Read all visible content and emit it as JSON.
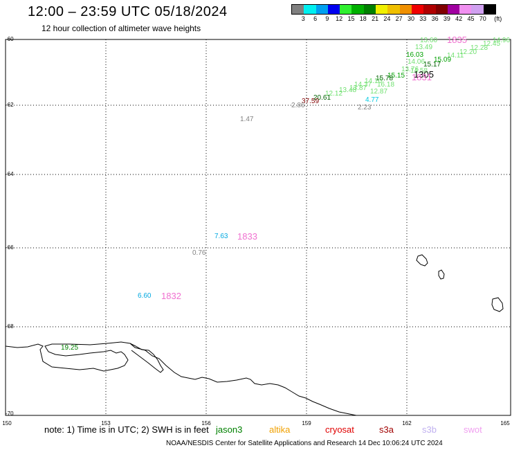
{
  "header": {
    "title": "12:00 – 23:59 UTC 05/18/2024",
    "subtitle": "12 hour collection of altimeter wave heights"
  },
  "legend": {
    "unit_label": "(ft)",
    "colors": [
      "#808080",
      "#00f0f0",
      "#00a0f0",
      "#0000f0",
      "#30f030",
      "#00b000",
      "#008000",
      "#f0f000",
      "#f0c000",
      "#f09000",
      "#f00000",
      "#b00000",
      "#800000",
      "#a000a0",
      "#f090f0",
      "#d0a0f0",
      "#000000"
    ],
    "ticks": [
      "3",
      "6",
      "9",
      "12",
      "15",
      "18",
      "21",
      "24",
      "27",
      "30",
      "33",
      "36",
      "39",
      "42",
      "45",
      "70"
    ]
  },
  "axes": {
    "lat_labels": [
      "-60",
      "-62",
      "-64",
      "-66",
      "-68",
      "-70"
    ],
    "lon_labels": [
      "150",
      "153",
      "156",
      "159",
      "162",
      "165"
    ]
  },
  "observations": [
    {
      "text": "13.60",
      "color": "#70e070"
    },
    {
      "text": "1835",
      "color": "#f070d0",
      "kind": "sat"
    },
    {
      "text": "14.96",
      "color": "#70e070"
    },
    {
      "text": "12.45",
      "color": "#70e070"
    },
    {
      "text": "12.28",
      "color": "#70e070"
    },
    {
      "text": "13.49",
      "color": "#70e070"
    },
    {
      "text": "16.03",
      "color": "#00a000"
    },
    {
      "text": "12.20",
      "color": "#70e070"
    },
    {
      "text": "14.11",
      "color": "#70e070"
    },
    {
      "text": "15.09",
      "color": "#00a000"
    },
    {
      "text": "14.06",
      "color": "#70e070"
    },
    {
      "text": "15.17",
      "color": "#006000"
    },
    {
      "text": "14.58",
      "color": "#70e070"
    },
    {
      "text": "13.76",
      "color": "#70e070"
    },
    {
      "text": "1305",
      "color": "#000000",
      "kind": "sat"
    },
    {
      "text": "15.15",
      "color": "#00a000"
    },
    {
      "text": "15.78",
      "color": "#006000"
    },
    {
      "text": "1831",
      "color": "#f070d0",
      "kind": "sat"
    },
    {
      "text": "14.10",
      "color": "#70e070"
    },
    {
      "text": "16.18",
      "color": "#70e070"
    },
    {
      "text": "14.37",
      "color": "#70e070"
    },
    {
      "text": "13.87",
      "color": "#70e070"
    },
    {
      "text": "13.48",
      "color": "#70e070"
    },
    {
      "text": "12.87",
      "color": "#70e070"
    },
    {
      "text": "12.12",
      "color": "#70e070"
    },
    {
      "text": "20.61",
      "color": "#006000"
    },
    {
      "text": "37.59",
      "color": "#800000"
    },
    {
      "text": "2.86",
      "color": "#808080"
    },
    {
      "text": "4.77",
      "color": "#00c8e0"
    },
    {
      "text": "2.23",
      "color": "#808080"
    },
    {
      "text": "1.47",
      "color": "#808080"
    },
    {
      "text": "7.63",
      "color": "#00a8e0"
    },
    {
      "text": "1833",
      "color": "#f070d0",
      "kind": "sat"
    },
    {
      "text": "0.76",
      "color": "#808080"
    },
    {
      "text": "6.60",
      "color": "#00a8e0"
    },
    {
      "text": "1832",
      "color": "#f070d0",
      "kind": "sat"
    },
    {
      "text": "19.25",
      "color": "#008000"
    }
  ],
  "footer": {
    "note": "note:  1) Time is in UTC; 2) SWH is in feet",
    "satellites": [
      {
        "name": "jason3",
        "color": "#008000"
      },
      {
        "name": "altika",
        "color": "#f0a000"
      },
      {
        "name": "cryosat",
        "color": "#e00000"
      },
      {
        "name": "s3a",
        "color": "#a00000"
      },
      {
        "name": "s3b",
        "color": "#c0b0f0"
      },
      {
        "name": "swot",
        "color": "#f0a0f0"
      }
    ],
    "credit": "NOAA/NESDIS Center for Satellite Applications and Research    14 Dec 10:06:24 UTC 2024"
  }
}
